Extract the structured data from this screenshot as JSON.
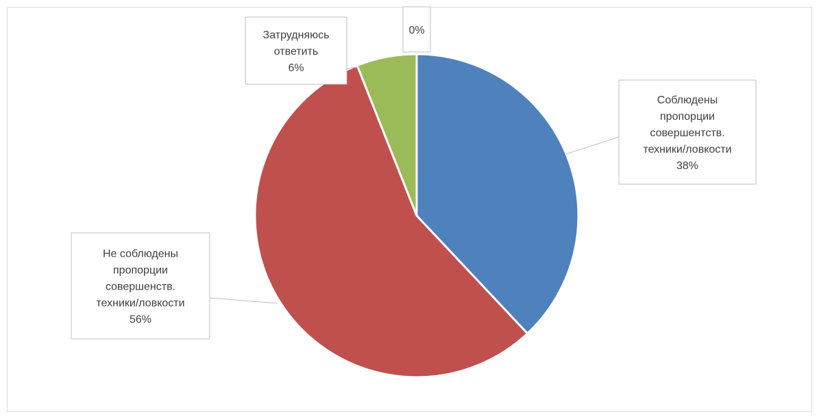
{
  "chart_data": {
    "type": "pie",
    "title": "",
    "slices": [
      {
        "label_lines": [
          "Соблюдены",
          "пропорции",
          "совершентств.",
          "техники/ловкости"
        ],
        "value": 38,
        "percent_label": "38%",
        "color": "#4f81bd"
      },
      {
        "label_lines": [
          "Не соблюдены",
          "пропорции",
          "совершенств.",
          "техники/ловкости"
        ],
        "value": 56,
        "percent_label": "56%",
        "color": "#c0504d"
      },
      {
        "label_lines": [
          "Затрудняюсь",
          "ответить"
        ],
        "value": 6,
        "percent_label": "6%",
        "color": "#9bbb59"
      },
      {
        "label_lines": [],
        "value": 0,
        "percent_label": "0%",
        "color": "#8064a2"
      }
    ],
    "legend": "none"
  }
}
